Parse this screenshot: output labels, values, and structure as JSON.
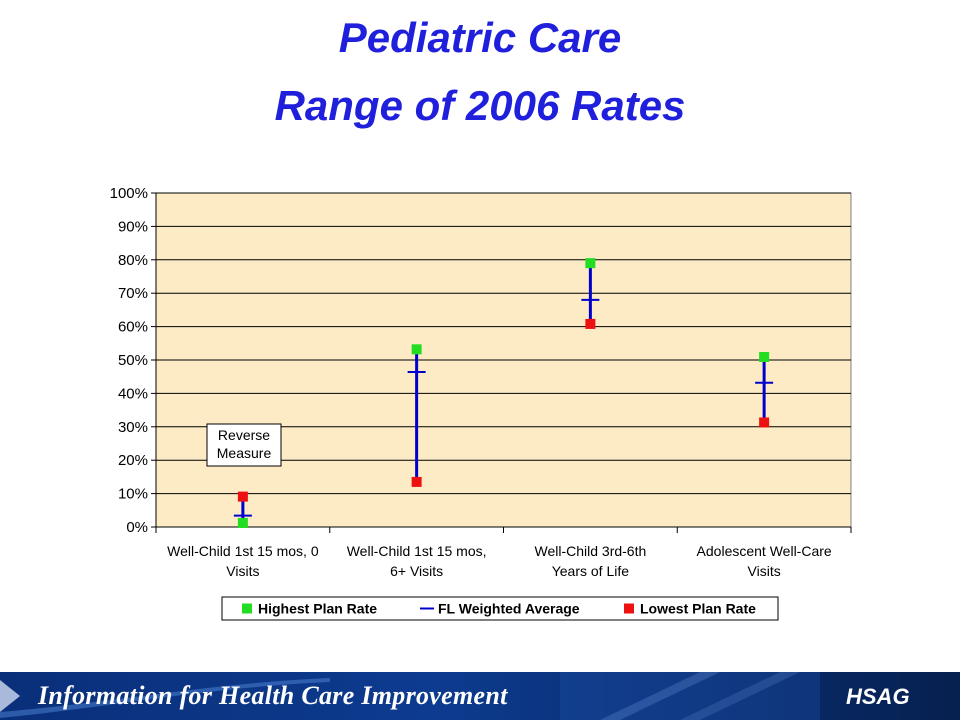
{
  "slide": {
    "title_line1": "Pediatric Care",
    "title_line2": "Range of 2006 Rates"
  },
  "chart_data": {
    "type": "range",
    "y_axis": {
      "min": 0,
      "max": 100,
      "step": 10,
      "tick_labels": [
        "0%",
        "10%",
        "20%",
        "30%",
        "40%",
        "50%",
        "60%",
        "70%",
        "80%",
        "90%",
        "100%"
      ],
      "gridlines": true
    },
    "categories": [
      [
        "Well-Child 1st 15 mos, 0",
        "Visits"
      ],
      [
        "Well-Child 1st 15 mos,",
        "6+ Visits"
      ],
      [
        "Well-Child 3rd-6th",
        "Years of Life"
      ],
      [
        "Adolescent Well-Care",
        "Visits"
      ]
    ],
    "series": [
      {
        "name": "Highest Plan Rate",
        "marker": "square",
        "color": "#22dd22",
        "values": [
          1.2,
          53.2,
          79.0,
          50.9
        ]
      },
      {
        "name": "FL Weighted Average",
        "marker": "dash",
        "color": "#0000cc",
        "values": [
          3.4,
          46.4,
          68.0,
          43.2
        ]
      },
      {
        "name": "Lowest Plan Rate",
        "marker": "square",
        "color": "#ee1111",
        "values": [
          9.1,
          13.5,
          60.8,
          31.3
        ]
      }
    ],
    "range_line_color": "#0000cc",
    "annotation": {
      "lines": [
        "Reverse",
        "Measure"
      ],
      "category_index": 0
    },
    "plot_background": "#fcebc4",
    "legend_position": "bottom"
  },
  "footer": {
    "tagline": "Information for Health Care Improvement",
    "logo": "HSAG"
  }
}
